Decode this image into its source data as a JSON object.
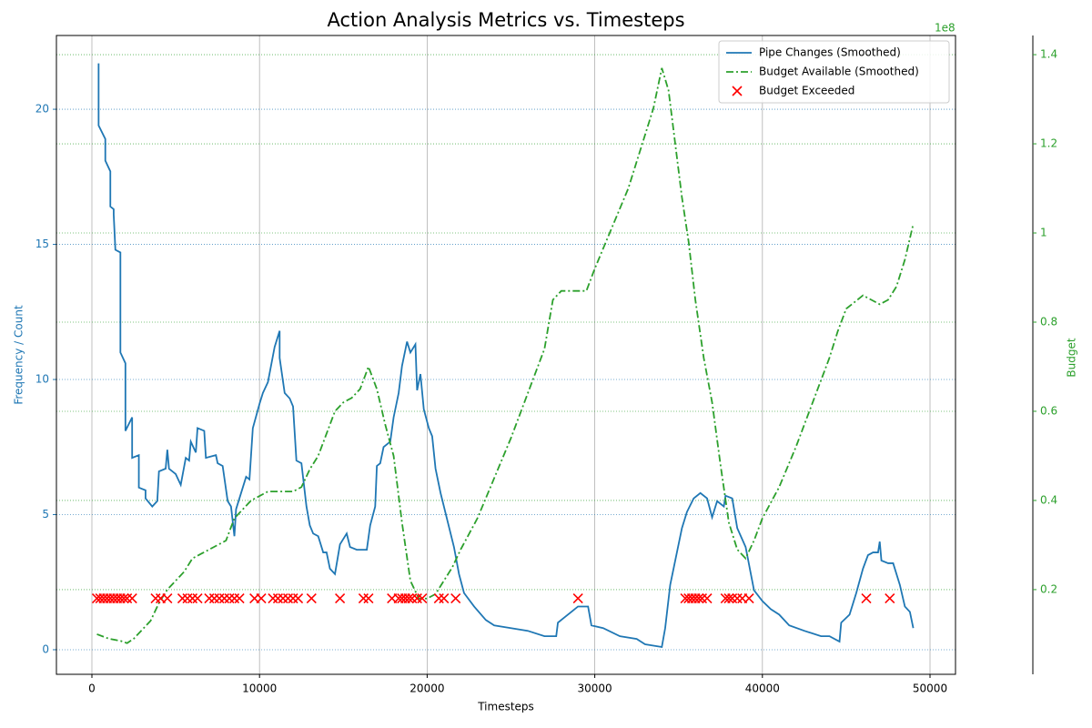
{
  "chart_data": {
    "type": "line",
    "title": "Action Analysis Metrics vs. Timesteps",
    "xlabel": "Timesteps",
    "ylabel": "Frequency / Count",
    "y2label": "Budget",
    "y2offset": "1e8",
    "xlim": [
      -2117,
      51520
    ],
    "xticks": [
      0,
      10000,
      20000,
      30000,
      40000,
      50000
    ],
    "ylim": [
      -0.91,
      22.73
    ],
    "yticks": [
      0,
      5,
      10,
      15,
      20
    ],
    "y2lim": [
      0.01,
      1.443
    ],
    "y2ticks": [
      0.2,
      0.4,
      0.6,
      0.8,
      1.0,
      1.2,
      1.4
    ],
    "grid": true,
    "legend": "upper right",
    "series": [
      {
        "name": "Pipe Changes (Smoothed)",
        "color": "#1f77b4",
        "style": "solid",
        "x": [
          400,
          400,
          800,
          800,
          1100,
          1100,
          1300,
          1300,
          1400,
          1700,
          1700,
          2000,
          2000,
          2400,
          2400,
          2800,
          2800,
          3200,
          3200,
          3600,
          3900,
          4000,
          4400,
          4500,
          4600,
          5000,
          5300,
          5600,
          5800,
          5900,
          6200,
          6300,
          6700,
          6800,
          7400,
          7500,
          7800,
          8100,
          8300,
          8500,
          8600,
          9200,
          9400,
          9600,
          10000,
          10200,
          10500,
          10900,
          11200,
          11200,
          11500,
          11800,
          12000,
          12200,
          12500,
          12800,
          13000,
          13200,
          13500,
          13800,
          14000,
          14200,
          14500,
          14800,
          15200,
          15400,
          15800,
          16400,
          16600,
          16900,
          17000,
          17200,
          17400,
          17800,
          18000,
          18300,
          18500,
          18800,
          19000,
          19300,
          19400,
          19600,
          19800,
          20100,
          20300,
          20500,
          20800,
          21200,
          21600,
          21900,
          22200,
          22800,
          23500,
          24000,
          25000,
          26000,
          27000,
          27700,
          27800,
          28200,
          28600,
          29000,
          29600,
          29800,
          30500,
          31500,
          32500,
          33000,
          34000,
          34200,
          34500,
          34900,
          35200,
          35500,
          35900,
          36300,
          36700,
          37000,
          37300,
          37700,
          37800,
          38200,
          38500,
          39000,
          39500,
          40000,
          40500,
          41000,
          41600,
          42500,
          43500,
          44000,
          44600,
          44700,
          45200,
          45600,
          46000,
          46300,
          46600,
          46900,
          47000,
          47100,
          47500,
          47800,
          48200,
          48500,
          48800,
          49000
        ],
        "values": [
          21.7,
          19.4,
          18.9,
          18.1,
          17.7,
          16.4,
          16.3,
          16.1,
          14.8,
          14.7,
          11,
          10.6,
          8.1,
          8.6,
          7.1,
          7.2,
          6,
          5.9,
          5.6,
          5.3,
          5.5,
          6.6,
          6.7,
          7.4,
          6.7,
          6.5,
          6.1,
          7.1,
          7.0,
          7.7,
          7.3,
          8.2,
          8.1,
          7.1,
          7.2,
          6.9,
          6.8,
          5.5,
          5.3,
          4.2,
          5.2,
          6.4,
          6.3,
          8.2,
          9.1,
          9.5,
          9.9,
          11.2,
          11.8,
          10.8,
          9.5,
          9.3,
          9.0,
          7.0,
          6.9,
          5.3,
          4.6,
          4.3,
          4.2,
          3.6,
          3.6,
          3.0,
          2.8,
          3.9,
          4.3,
          3.8,
          3.7,
          3.7,
          4.6,
          5.3,
          6.8,
          6.9,
          7.5,
          7.7,
          8.6,
          9.5,
          10.5,
          11.4,
          11.0,
          11.3,
          9.6,
          10.2,
          8.9,
          8.2,
          7.9,
          6.7,
          5.8,
          4.8,
          3.8,
          2.8,
          2.1,
          1.6,
          1.1,
          0.9,
          0.8,
          0.7,
          0.5,
          0.5,
          1.0,
          1.2,
          1.4,
          1.6,
          1.6,
          0.9,
          0.8,
          0.5,
          0.4,
          0.2,
          0.1,
          0.8,
          2.4,
          3.6,
          4.5,
          5.1,
          5.6,
          5.8,
          5.6,
          4.9,
          5.5,
          5.3,
          5.7,
          5.6,
          4.5,
          3.8,
          2.2,
          1.8,
          1.5,
          1.3,
          0.9,
          0.7,
          0.5,
          0.5,
          0.3,
          1.0,
          1.3,
          2.1,
          3.0,
          3.5,
          3.6,
          3.6,
          4.0,
          3.3,
          3.2,
          3.2,
          2.4,
          1.6,
          1.4,
          0.8
        ]
      },
      {
        "name": "Budget Available (Smoothed)",
        "color": "#2ca02c",
        "style": "dashdot",
        "axis": "y2",
        "x": [
          300,
          1000,
          1700,
          2100,
          2500,
          3000,
          3500,
          4000,
          4500,
          5000,
          5500,
          6000,
          6500,
          7000,
          7500,
          8000,
          8500,
          9000,
          9500,
          10000,
          10500,
          11000,
          12000,
          12500,
          13000,
          13500,
          14000,
          14500,
          15000,
          15500,
          16000,
          16500,
          17000,
          17500,
          18000,
          18500,
          19000,
          19500,
          20000,
          20500,
          21000,
          21500,
          22000,
          23000,
          24000,
          25000,
          26000,
          27000,
          27500,
          28000,
          29000,
          29500,
          30000,
          31000,
          32000,
          33000,
          33500,
          34000,
          34400,
          34800,
          35200,
          35600,
          36000,
          36500,
          37000,
          37500,
          38000,
          38500,
          39000,
          39500,
          40000,
          41000,
          42000,
          43000,
          44000,
          44500,
          45000,
          46000,
          47000,
          47500,
          48000,
          48500,
          49000
        ],
        "values": [
          0.1,
          0.09,
          0.085,
          0.08,
          0.09,
          0.11,
          0.13,
          0.17,
          0.2,
          0.22,
          0.24,
          0.27,
          0.28,
          0.29,
          0.3,
          0.31,
          0.36,
          0.38,
          0.4,
          0.41,
          0.42,
          0.42,
          0.42,
          0.43,
          0.47,
          0.5,
          0.55,
          0.6,
          0.62,
          0.63,
          0.65,
          0.7,
          0.65,
          0.57,
          0.5,
          0.35,
          0.22,
          0.18,
          0.18,
          0.19,
          0.22,
          0.25,
          0.29,
          0.36,
          0.45,
          0.54,
          0.64,
          0.74,
          0.85,
          0.87,
          0.87,
          0.87,
          0.92,
          1.01,
          1.1,
          1.22,
          1.28,
          1.37,
          1.32,
          1.2,
          1.08,
          0.98,
          0.85,
          0.72,
          0.62,
          0.48,
          0.35,
          0.29,
          0.27,
          0.31,
          0.36,
          0.43,
          0.52,
          0.62,
          0.72,
          0.78,
          0.83,
          0.86,
          0.84,
          0.85,
          0.88,
          0.94,
          1.02
        ]
      },
      {
        "name": "Budget Exceeded",
        "color": "#ff0000",
        "style": "marker",
        "x": [
          300,
          500,
          700,
          900,
          1100,
          1300,
          1500,
          1700,
          1900,
          2100,
          2400,
          3800,
          4100,
          4500,
          5400,
          5700,
          6000,
          6300,
          7000,
          7300,
          7600,
          7900,
          8200,
          8500,
          8800,
          9700,
          10100,
          10800,
          11100,
          11400,
          11700,
          12000,
          12300,
          13100,
          14800,
          16200,
          16500,
          17900,
          18300,
          18500,
          18700,
          18900,
          19100,
          19400,
          19700,
          20700,
          21000,
          21700,
          29000,
          35400,
          35600,
          35800,
          36000,
          36200,
          36400,
          36700,
          37800,
          38000,
          38200,
          38500,
          38800,
          39200,
          46200,
          47600
        ],
        "values": [
          1.9,
          1.9,
          1.9,
          1.9,
          1.9,
          1.9,
          1.9,
          1.9,
          1.9,
          1.9,
          1.9,
          1.9,
          1.9,
          1.9,
          1.9,
          1.9,
          1.9,
          1.9,
          1.9,
          1.9,
          1.9,
          1.9,
          1.9,
          1.9,
          1.9,
          1.9,
          1.9,
          1.9,
          1.9,
          1.9,
          1.9,
          1.9,
          1.9,
          1.9,
          1.9,
          1.9,
          1.9,
          1.9,
          1.9,
          1.9,
          1.9,
          1.9,
          1.9,
          1.9,
          1.9,
          1.9,
          1.9,
          1.9,
          1.9,
          1.9,
          1.9,
          1.9,
          1.9,
          1.9,
          1.9,
          1.9,
          1.9,
          1.9,
          1.9,
          1.9,
          1.9,
          1.9,
          1.9,
          1.9
        ]
      }
    ]
  }
}
